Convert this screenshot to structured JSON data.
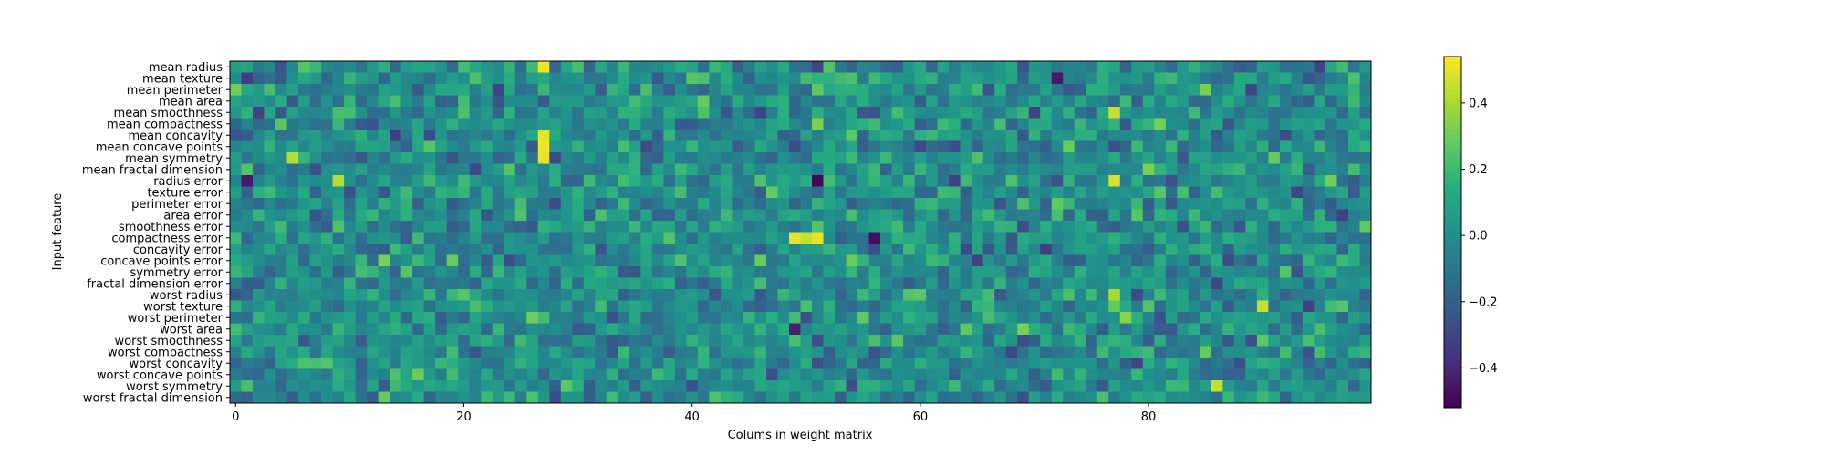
{
  "chart_data": {
    "type": "heatmap",
    "title": "",
    "xlabel": "Colums in weight matrix",
    "ylabel": "Input feature",
    "n_columns": 100,
    "x_ticks": [
      0,
      20,
      40,
      60,
      80
    ],
    "rows": [
      "mean radius",
      "mean texture",
      "mean perimeter",
      "mean area",
      "mean smoothness",
      "mean compactness",
      "mean concavity",
      "mean concave points",
      "mean symmetry",
      "mean fractal dimension",
      "radius error",
      "texture error",
      "perimeter error",
      "area error",
      "smoothness error",
      "compactness error",
      "concavity error",
      "concave points error",
      "symmetry error",
      "fractal dimension error",
      "worst radius",
      "worst texture",
      "worst perimeter",
      "worst area",
      "worst smoothness",
      "worst compactness",
      "worst concavity",
      "worst concave points",
      "worst symmetry",
      "worst fractal dimension"
    ],
    "colorbar": {
      "colormap": "viridis",
      "min": -0.52,
      "max": 0.54,
      "ticks": [
        -0.4,
        -0.2,
        0.0,
        0.2,
        0.4
      ],
      "tick_labels": [
        "−0.4",
        "−0.2",
        "0.0",
        "0.2",
        "0.4"
      ]
    },
    "notable_cells": [
      {
        "row": "mean radius",
        "column": 27,
        "value": 0.52
      },
      {
        "row": "mean concavity",
        "column": 27,
        "value": 0.5
      },
      {
        "row": "mean concave points",
        "column": 27,
        "value": 0.52
      },
      {
        "row": "mean symmetry",
        "column": 27,
        "value": 0.5
      },
      {
        "row": "mean symmetry",
        "column": 5,
        "value": 0.42
      },
      {
        "row": "radius error",
        "column": 51,
        "value": -0.5
      },
      {
        "row": "radius error",
        "column": 77,
        "value": 0.48
      },
      {
        "row": "radius error",
        "column": 1,
        "value": -0.45
      },
      {
        "row": "radius error",
        "column": 9,
        "value": 0.42
      },
      {
        "row": "compactness error",
        "column": 49,
        "value": 0.5
      },
      {
        "row": "compactness error",
        "column": 50,
        "value": 0.45
      },
      {
        "row": "compactness error",
        "column": 51,
        "value": 0.5
      },
      {
        "row": "compactness error",
        "column": 56,
        "value": -0.48
      },
      {
        "row": "mean texture",
        "column": 72,
        "value": -0.45
      },
      {
        "row": "mean smoothness",
        "column": 77,
        "value": 0.45
      },
      {
        "row": "worst texture",
        "column": 90,
        "value": 0.45
      },
      {
        "row": "worst symmetry",
        "column": 86,
        "value": 0.45
      },
      {
        "row": "worst area",
        "column": 49,
        "value": -0.42
      },
      {
        "row": "worst radius",
        "column": 77,
        "value": 0.4
      },
      {
        "row": "worst perimeter",
        "column": 78,
        "value": 0.35
      }
    ],
    "colors": {
      "grid": "none",
      "frame": "#000000"
    }
  }
}
